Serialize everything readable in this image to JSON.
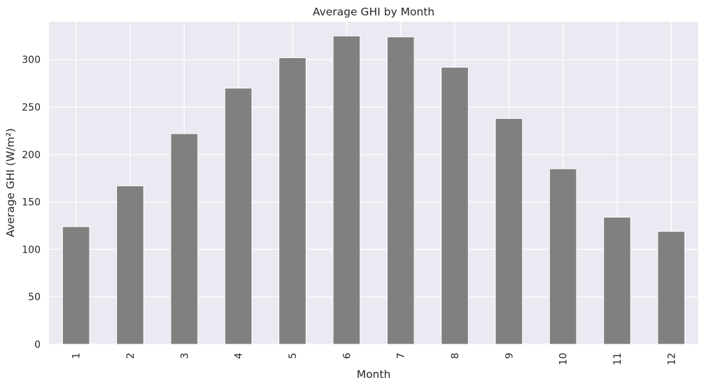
{
  "chart_data": {
    "type": "bar",
    "title": "Average GHI by Month",
    "xlabel": "Month",
    "ylabel": "Average GHI (W/m²)",
    "categories": [
      "1",
      "2",
      "3",
      "4",
      "5",
      "6",
      "7",
      "8",
      "9",
      "10",
      "11",
      "12"
    ],
    "values": [
      124,
      167,
      222,
      270,
      302,
      325,
      324,
      292,
      238,
      185,
      134,
      119
    ],
    "ylim": [
      0,
      340
    ],
    "yticks": [
      0,
      50,
      100,
      150,
      200,
      250,
      300
    ],
    "grid": true,
    "colors": {
      "bar": "#808080",
      "plot_background": "#eaeaf2",
      "grid": "#ffffff",
      "text": "#262626"
    }
  }
}
